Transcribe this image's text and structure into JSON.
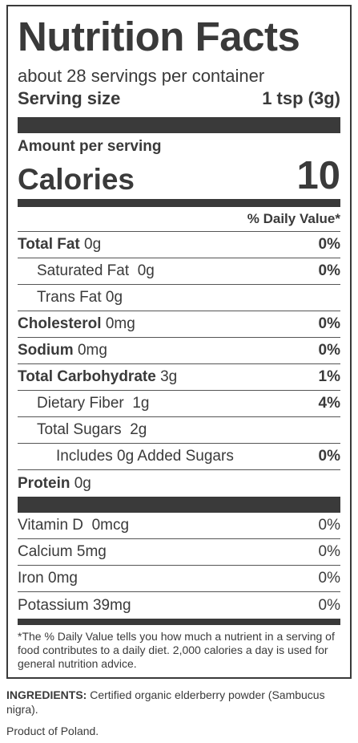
{
  "title": "Nutrition Facts",
  "servings_per_container": "about 28 servings per container",
  "serving_size_label": "Serving size",
  "serving_size_value": "1 tsp (3g)",
  "amount_per_serving": "Amount per serving",
  "calories_label": "Calories",
  "calories_value": "10",
  "daily_value_header": "% Daily Value*",
  "nutrients": [
    {
      "name": "Total Fat",
      "amount": "0g",
      "dv": "0%"
    },
    {
      "name": "Saturated Fat",
      "amount": "0g",
      "dv": "0%"
    },
    {
      "name": "Trans Fat",
      "amount": "0g",
      "dv": ""
    },
    {
      "name": "Cholesterol",
      "amount": "0mg",
      "dv": "0%"
    },
    {
      "name": "Sodium",
      "amount": "0mg",
      "dv": "0%"
    },
    {
      "name": "Total Carbohydrate",
      "amount": "3g",
      "dv": "1%"
    },
    {
      "name": "Dietary Fiber",
      "amount": "1g",
      "dv": "4%"
    },
    {
      "name": "Total Sugars",
      "amount": "2g",
      "dv": ""
    },
    {
      "name": "Includes 0g Added Sugars",
      "amount": "",
      "dv": "0%"
    },
    {
      "name": "Protein",
      "amount": "0g",
      "dv": ""
    }
  ],
  "vitamins": [
    {
      "name": "Vitamin D",
      "amount": "0mcg",
      "dv": "0%"
    },
    {
      "name": "Calcium",
      "amount": "5mg",
      "dv": "0%"
    },
    {
      "name": "Iron",
      "amount": "0mg",
      "dv": "0%"
    },
    {
      "name": "Potassium",
      "amount": "39mg",
      "dv": "0%"
    }
  ],
  "footnote": "*The % Daily Value tells you how much a nutrient in a serving of food contributes to a daily diet. 2,000 calories a day is used for general nutrition advice.",
  "ingredients_label": "INGREDIENTS:",
  "ingredients_text": " Certified organic elderberry powder (Sambucus nigra).",
  "origin": "Product of Poland."
}
